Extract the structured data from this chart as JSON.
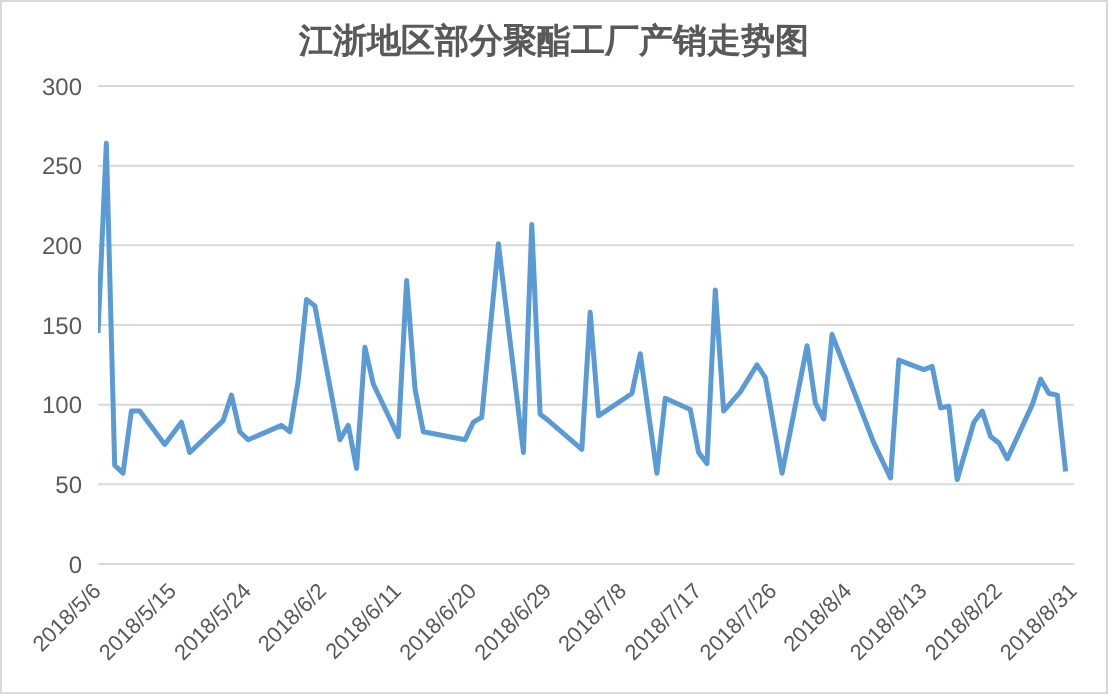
{
  "chart_data": {
    "type": "line",
    "title": "江浙地区部分聚酯工厂产销走势图",
    "x": [
      "2018-05-06",
      "2018-05-07",
      "2018-05-08",
      "2018-05-09",
      "2018-05-10",
      "2018-05-11",
      "2018-05-14",
      "2018-05-16",
      "2018-05-17",
      "2018-05-21",
      "2018-05-22",
      "2018-05-23",
      "2018-05-24",
      "2018-05-28",
      "2018-05-29",
      "2018-05-30",
      "2018-05-31",
      "2018-06-01",
      "2018-06-04",
      "2018-06-05",
      "2018-06-06",
      "2018-06-07",
      "2018-06-08",
      "2018-06-11",
      "2018-06-12",
      "2018-06-13",
      "2018-06-14",
      "2018-06-19",
      "2018-06-20",
      "2018-06-21",
      "2018-06-23",
      "2018-06-26",
      "2018-06-27",
      "2018-06-28",
      "2018-06-29",
      "2018-07-03",
      "2018-07-04",
      "2018-07-05",
      "2018-07-09",
      "2018-07-10",
      "2018-07-12",
      "2018-07-13",
      "2018-07-16",
      "2018-07-17",
      "2018-07-18",
      "2018-07-19",
      "2018-07-20",
      "2018-07-22",
      "2018-07-24",
      "2018-07-25",
      "2018-07-27",
      "2018-07-30",
      "2018-07-31",
      "2018-08-01",
      "2018-08-02",
      "2018-08-07",
      "2018-08-09",
      "2018-08-10",
      "2018-08-13",
      "2018-08-14",
      "2018-08-15",
      "2018-08-16",
      "2018-08-17",
      "2018-08-19",
      "2018-08-20",
      "2018-08-21",
      "2018-08-22",
      "2018-08-23",
      "2018-08-26",
      "2018-08-27",
      "2018-08-28",
      "2018-08-29",
      "2018-08-30"
    ],
    "series": [
      {
        "color": "#5b9bd5",
        "values": [
          145,
          264,
          62,
          57,
          96,
          96,
          75,
          89,
          70,
          90,
          106,
          83,
          78,
          87,
          83,
          115,
          166,
          162,
          78,
          87,
          60,
          136,
          113,
          80,
          178,
          110,
          83,
          78,
          89,
          92,
          201,
          70,
          213,
          94,
          90,
          72,
          158,
          93,
          107,
          132,
          57,
          104,
          97,
          70,
          63,
          172,
          96,
          108,
          125,
          117,
          57,
          137,
          101,
          91,
          144,
          76,
          54,
          128,
          122,
          124,
          98,
          99,
          53,
          89,
          96,
          80,
          76,
          66,
          100,
          116,
          107,
          106,
          58
        ]
      }
    ],
    "xlim": [
      "2018-05-06",
      "2018-08-31"
    ],
    "xticks": [
      {
        "value": "2018-05-06",
        "label": "2018/5/6"
      },
      {
        "value": "2018-05-15",
        "label": "2018/5/15"
      },
      {
        "value": "2018-05-24",
        "label": "2018/5/24"
      },
      {
        "value": "2018-06-02",
        "label": "2018/6/2"
      },
      {
        "value": "2018-06-11",
        "label": "2018/6/11"
      },
      {
        "value": "2018-06-20",
        "label": "2018/6/20"
      },
      {
        "value": "2018-06-29",
        "label": "2018/6/29"
      },
      {
        "value": "2018-07-08",
        "label": "2018/7/8"
      },
      {
        "value": "2018-07-17",
        "label": "2018/7/17"
      },
      {
        "value": "2018-07-26",
        "label": "2018/7/26"
      },
      {
        "value": "2018-08-04",
        "label": "2018/8/4"
      },
      {
        "value": "2018-08-13",
        "label": "2018/8/13"
      },
      {
        "value": "2018-08-22",
        "label": "2018/8/22"
      },
      {
        "value": "2018-08-31",
        "label": "2018/8/31"
      }
    ],
    "ylim": [
      0,
      300
    ],
    "yticks": [
      0,
      50,
      100,
      150,
      200,
      250,
      300
    ],
    "grid": "y",
    "legend": false,
    "marker": "none",
    "line_style": "solid"
  }
}
